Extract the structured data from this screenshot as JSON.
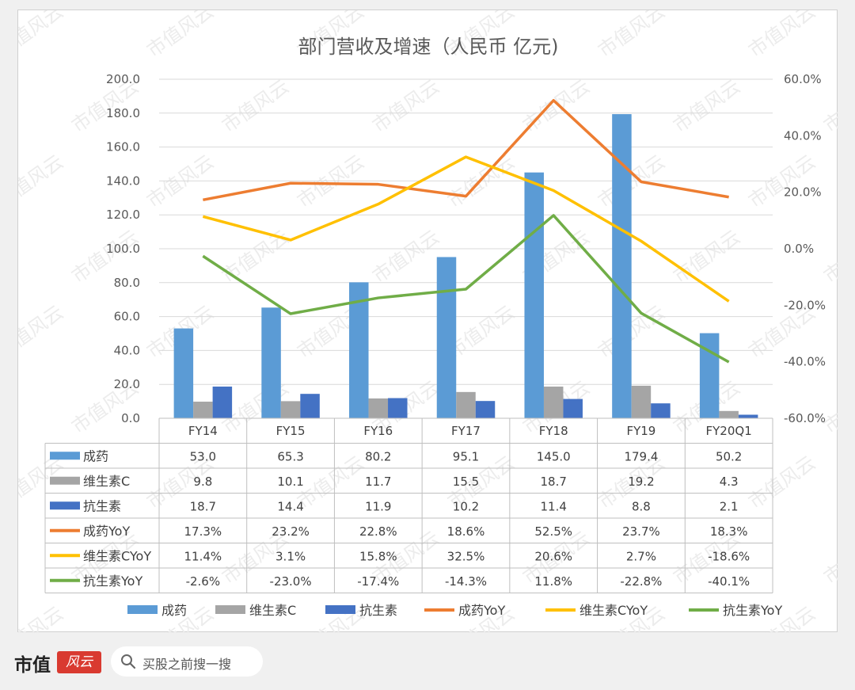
{
  "watermark": "市值风云",
  "footer": {
    "brand": "市值",
    "logo": "风云",
    "search_placeholder": "买股之前搜一搜"
  },
  "chart_data": {
    "type": "bar",
    "title": "部门营收及增速（人民币 亿元)",
    "categories": [
      "FY14",
      "FY15",
      "FY16",
      "FY17",
      "FY18",
      "FY19",
      "FY20Q1"
    ],
    "left_axis": {
      "min": 0,
      "max": 200,
      "step": 20,
      "tick_labels": [
        "0.0",
        "20.0",
        "40.0",
        "60.0",
        "80.0",
        "100.0",
        "120.0",
        "140.0",
        "160.0",
        "180.0",
        "200.0"
      ]
    },
    "right_axis": {
      "min": -60,
      "max": 60,
      "step": 20,
      "tick_labels": [
        "-60.0%",
        "-40.0%",
        "-20.0%",
        "0.0%",
        "20.0%",
        "40.0%",
        "60.0%"
      ]
    },
    "grid": true,
    "legend_position": "bottom",
    "bar_series": [
      {
        "name": "成药",
        "color": "#5b9bd5",
        "values": [
          53.0,
          65.3,
          80.2,
          95.1,
          145.0,
          179.4,
          50.2
        ],
        "labels": [
          "53.0",
          "65.3",
          "80.2",
          "95.1",
          "145.0",
          "179.4",
          "50.2"
        ]
      },
      {
        "name": "维生素C",
        "color": "#a5a5a5",
        "values": [
          9.8,
          10.1,
          11.7,
          15.5,
          18.7,
          19.2,
          4.3
        ],
        "labels": [
          "9.8",
          "10.1",
          "11.7",
          "15.5",
          "18.7",
          "19.2",
          "4.3"
        ]
      },
      {
        "name": "抗生素",
        "color": "#4472c4",
        "values": [
          18.7,
          14.4,
          11.9,
          10.2,
          11.4,
          8.8,
          2.1
        ],
        "labels": [
          "18.7",
          "14.4",
          "11.9",
          "10.2",
          "11.4",
          "8.8",
          "2.1"
        ]
      }
    ],
    "line_series": [
      {
        "name": "成药YoY",
        "color": "#ed7d31",
        "values": [
          17.3,
          23.2,
          22.8,
          18.6,
          52.5,
          23.7,
          18.3
        ],
        "labels": [
          "17.3%",
          "23.2%",
          "22.8%",
          "18.6%",
          "52.5%",
          "23.7%",
          "18.3%"
        ]
      },
      {
        "name": "维生素CYoY",
        "color": "#ffc000",
        "values": [
          11.4,
          3.1,
          15.8,
          32.5,
          20.6,
          2.7,
          -18.6
        ],
        "labels": [
          "11.4%",
          "3.1%",
          "15.8%",
          "32.5%",
          "20.6%",
          "2.7%",
          "-18.6%"
        ]
      },
      {
        "name": "抗生素YoY",
        "color": "#70ad47",
        "values": [
          -2.6,
          -23.0,
          -17.4,
          -14.3,
          11.8,
          -22.8,
          -40.1
        ],
        "labels": [
          "-2.6%",
          "-23.0%",
          "-17.4%",
          "-14.3%",
          "11.8%",
          "-22.8%",
          "-40.1%"
        ]
      }
    ]
  }
}
